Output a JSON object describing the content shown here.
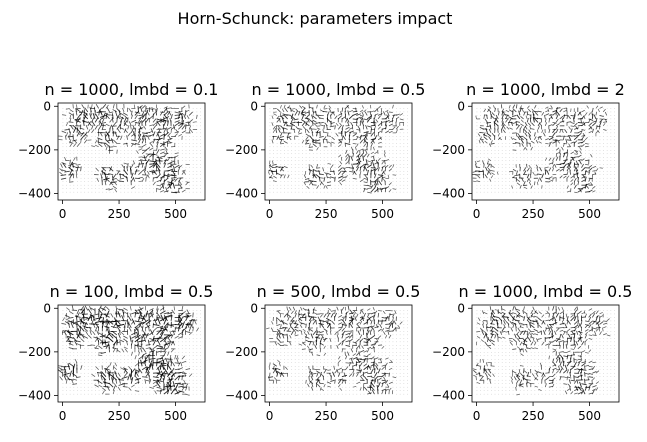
{
  "suptitle": "Horn-Schunck: parameters impact",
  "chart_data": [
    {
      "type": "quiver",
      "title": "n = 1000, lmbd = 0.1",
      "xticks": [
        "0",
        "250",
        "500"
      ],
      "yticks": [
        "0",
        "−200",
        "−400"
      ],
      "xlim": [
        -20,
        630
      ],
      "ylim": [
        -430,
        15
      ],
      "density": 0.6,
      "magnitude": 0.95
    },
    {
      "type": "quiver",
      "title": "n = 1000, lmbd = 0.5",
      "xticks": [
        "0",
        "250",
        "500"
      ],
      "yticks": [
        "0",
        "−200",
        "−400"
      ],
      "xlim": [
        -20,
        630
      ],
      "ylim": [
        -430,
        15
      ],
      "density": 0.55,
      "magnitude": 0.85
    },
    {
      "type": "quiver",
      "title": "n = 1000, lmbd = 2",
      "xticks": [
        "0",
        "250",
        "500"
      ],
      "yticks": [
        "0",
        "−200",
        "−400"
      ],
      "xlim": [
        -20,
        630
      ],
      "ylim": [
        -430,
        15
      ],
      "density": 0.55,
      "magnitude": 0.8
    },
    {
      "type": "quiver",
      "title": "n = 100, lmbd = 0.5",
      "xticks": [
        "0",
        "250",
        "500"
      ],
      "yticks": [
        "0",
        "−200",
        "−400"
      ],
      "xlim": [
        -20,
        630
      ],
      "ylim": [
        -430,
        15
      ],
      "density": 0.7,
      "magnitude": 1.0
    },
    {
      "type": "quiver",
      "title": "n = 500, lmbd = 0.5",
      "xticks": [
        "0",
        "250",
        "500"
      ],
      "yticks": [
        "0",
        "−200",
        "−400"
      ],
      "xlim": [
        -20,
        630
      ],
      "ylim": [
        -430,
        15
      ],
      "density": 0.55,
      "magnitude": 0.85
    },
    {
      "type": "quiver",
      "title": "n = 1000, lmbd = 0.5",
      "xticks": [
        "0",
        "250",
        "500"
      ],
      "yticks": [
        "0",
        "−200",
        "−400"
      ],
      "xlim": [
        -20,
        630
      ],
      "ylim": [
        -430,
        15
      ],
      "density": 0.55,
      "magnitude": 0.85
    }
  ]
}
